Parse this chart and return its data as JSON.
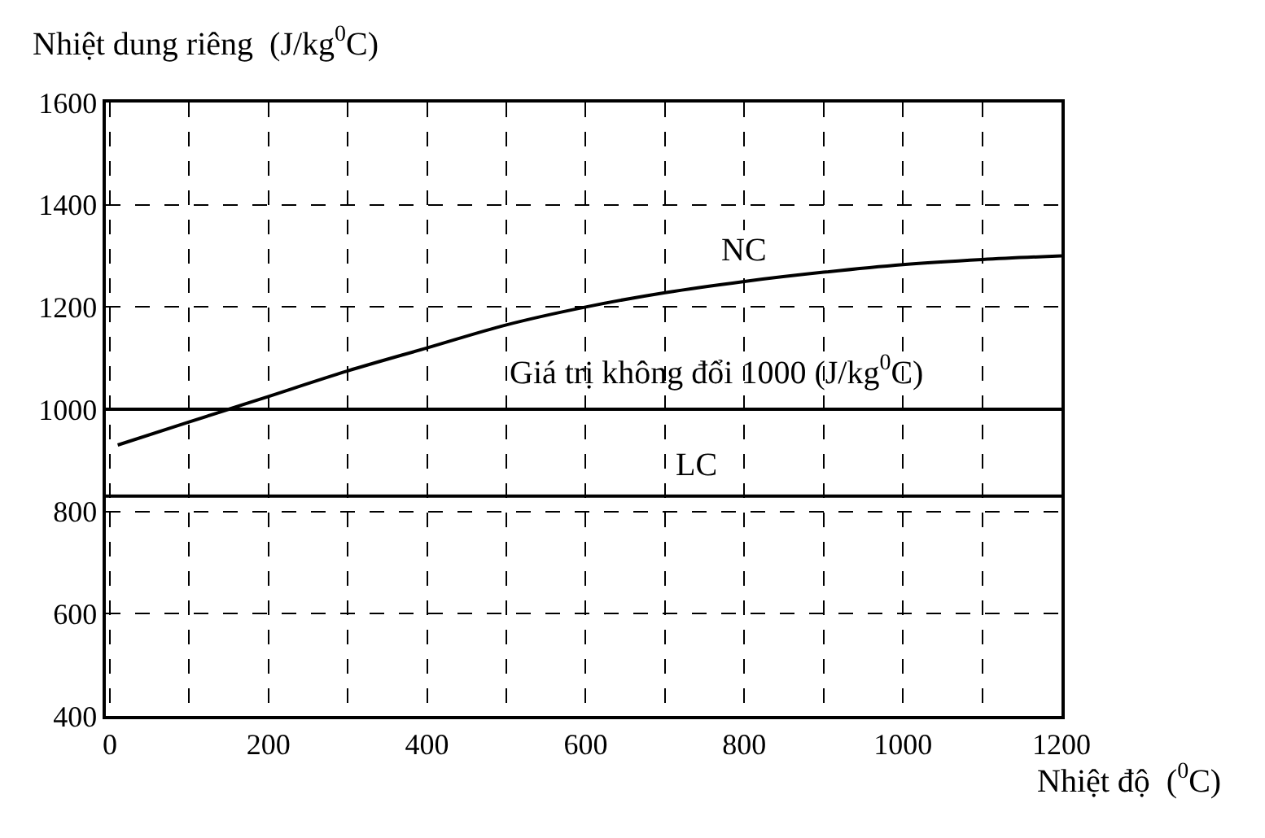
{
  "chart_data": {
    "type": "line",
    "xlabel": "Nhiệt độ  ($^{0}$C)",
    "ylabel": "Nhiệt dung riêng  (J/kg$^{0}$C)",
    "series": [
      {
        "name": "NC",
        "color": "#000000",
        "x": [
          10,
          100,
          150,
          200,
          300,
          400,
          500,
          600,
          700,
          800,
          900,
          1000,
          1100,
          1200
        ],
        "values": [
          930,
          975,
          1000,
          1025,
          1075,
          1120,
          1165,
          1200,
          1228,
          1250,
          1268,
          1283,
          1293,
          1300
        ]
      },
      {
        "name": "LC",
        "color": "#000000",
        "x": [
          -5,
          1200
        ],
        "values": [
          830,
          830
        ]
      }
    ],
    "ref_lines": [
      {
        "axis": "y",
        "value": 1000,
        "label": "Giá trị không đổi 1000 (J/kg$^{0}$C)",
        "color": "#000000",
        "line_style": "solid"
      }
    ],
    "xlim": [
      -5,
      1200
    ],
    "xticks": [
      0,
      {
        "value": 100,
        "label": null
      },
      200,
      {
        "value": 300,
        "label": null
      },
      400,
      {
        "value": 500,
        "label": null
      },
      600,
      {
        "value": 700,
        "label": null
      },
      800,
      {
        "value": 900,
        "label": null
      },
      1000,
      {
        "value": 1100,
        "label": null
      },
      1200
    ],
    "ylim": [
      400,
      1600
    ],
    "yticks": [
      400,
      600,
      800,
      1000,
      1200,
      1400,
      1600
    ],
    "grid": true,
    "legend": false,
    "marker": "none",
    "line_style": "solid"
  }
}
